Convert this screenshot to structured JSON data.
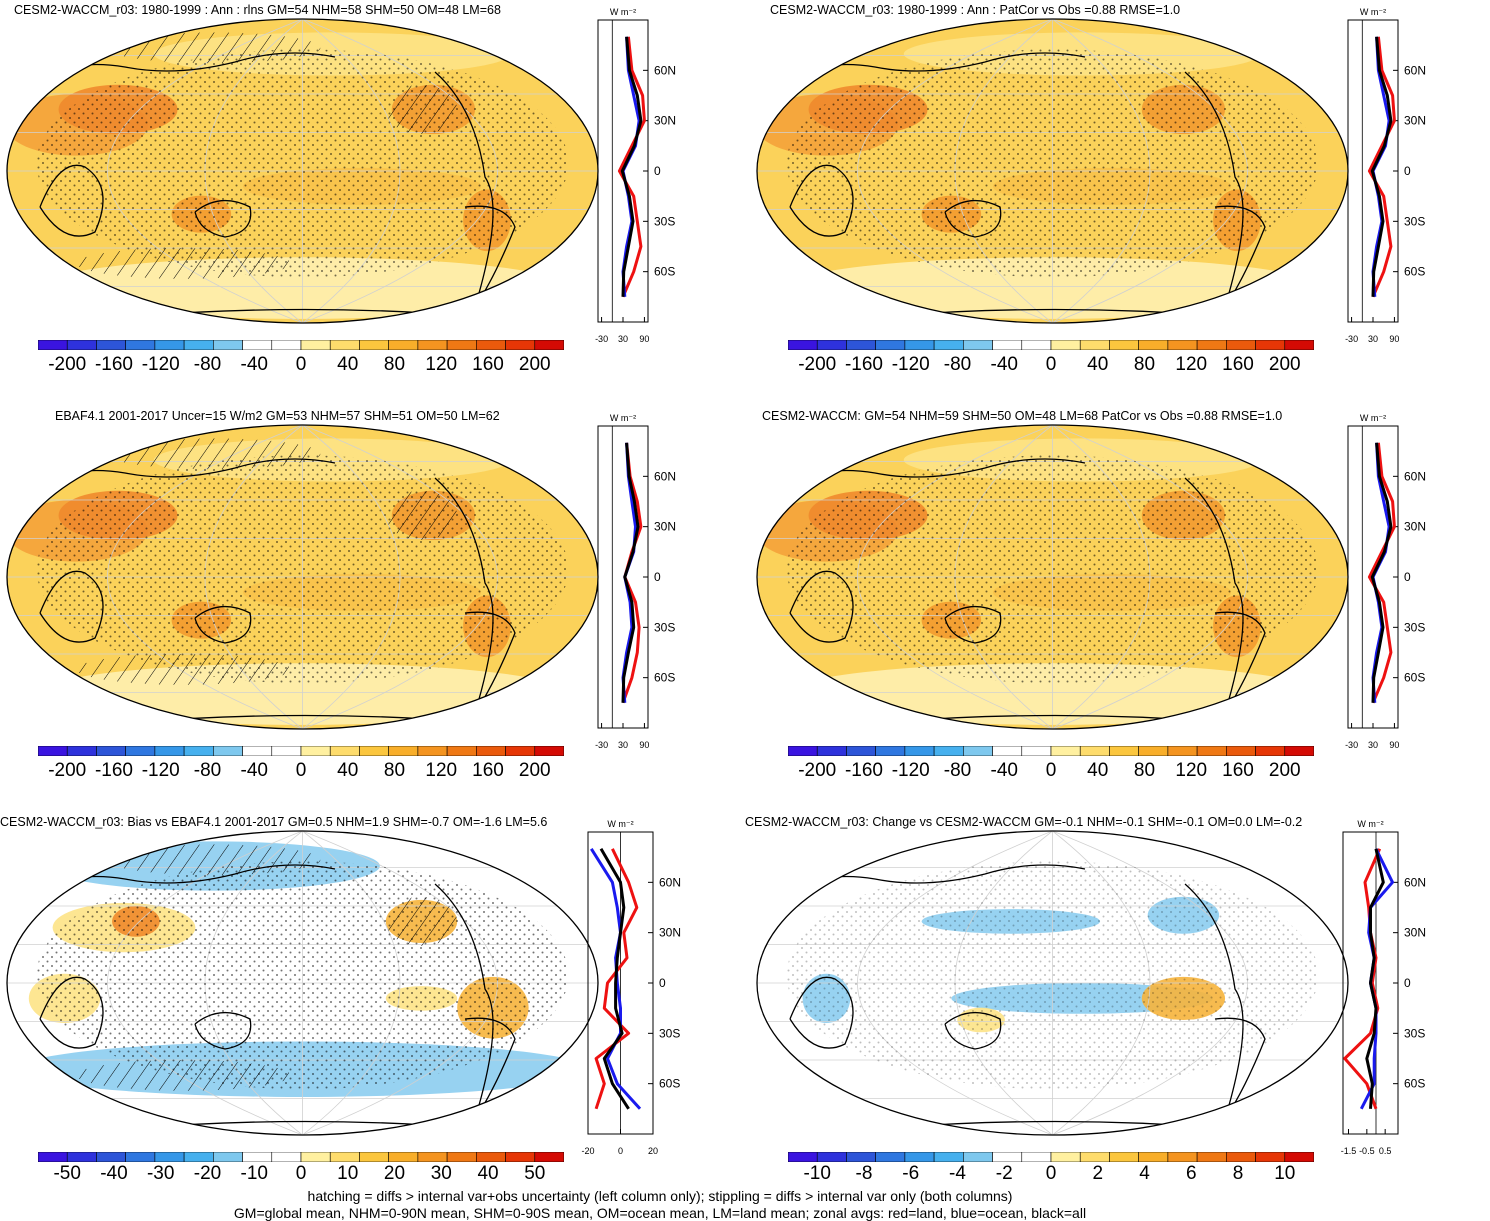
{
  "panels": [
    {
      "id": "p1",
      "title": "CESM2-WACCM_r03: 1980-1999 : Ann : rlns GM=54 NHM=58 SHM=50 OM=48 LM=68",
      "colorbar": [
        "-200",
        "-160",
        "-120",
        "-80",
        "-40",
        "0",
        "40",
        "80",
        "120",
        "160",
        "200"
      ],
      "zonal_xticks": [
        "-30",
        "30",
        "90"
      ],
      "zonal_xlim": [
        -40,
        100
      ],
      "zonal_yticks": [
        "60N",
        "30N",
        "0",
        "30S",
        "60S"
      ],
      "units": "W m⁻²",
      "hatched": true,
      "palette": "warm"
    },
    {
      "id": "p2",
      "title": "CESM2-WACCM_r03: 1980-1999 : Ann : PatCor vs Obs =0.88 RMSE=1.0",
      "colorbar": [
        "-200",
        "-160",
        "-120",
        "-80",
        "-40",
        "0",
        "40",
        "80",
        "120",
        "160",
        "200"
      ],
      "zonal_xticks": [
        "-30",
        "30",
        "90"
      ],
      "zonal_xlim": [
        -40,
        100
      ],
      "zonal_yticks": [
        "60N",
        "30N",
        "0",
        "30S",
        "60S"
      ],
      "units": "W m⁻²",
      "hatched": false,
      "palette": "warm"
    },
    {
      "id": "p3",
      "title": "EBAF4.1 2001-2017 Uncer=15 W/m2 GM=53 NHM=57 SHM=51 OM=50 LM=62",
      "colorbar": [
        "-200",
        "-160",
        "-120",
        "-80",
        "-40",
        "0",
        "40",
        "80",
        "120",
        "160",
        "200"
      ],
      "zonal_xticks": [
        "-30",
        "30",
        "90"
      ],
      "zonal_xlim": [
        -40,
        100
      ],
      "zonal_yticks": [
        "60N",
        "30N",
        "0",
        "30S",
        "60S"
      ],
      "units": "W m⁻²",
      "hatched": true,
      "palette": "warm"
    },
    {
      "id": "p4",
      "title": "CESM2-WACCM: GM=54 NHM=59 SHM=50 OM=48 LM=68 PatCor vs Obs =0.88 RMSE=1.0",
      "colorbar": [
        "-200",
        "-160",
        "-120",
        "-80",
        "-40",
        "0",
        "40",
        "80",
        "120",
        "160",
        "200"
      ],
      "zonal_xticks": [
        "-30",
        "30",
        "90"
      ],
      "zonal_xlim": [
        -40,
        100
      ],
      "zonal_yticks": [
        "60N",
        "30N",
        "0",
        "30S",
        "60S"
      ],
      "units": "W m⁻²",
      "hatched": false,
      "palette": "warm"
    },
    {
      "id": "p5",
      "title": "CESM2-WACCM_r03: Bias vs EBAF4.1 2001-2017 GM=0.5 NHM=1.9 SHM=-0.7 OM=-1.6 LM=5.6",
      "colorbar": [
        "-50",
        "-40",
        "-30",
        "-20",
        "-10",
        "0",
        "10",
        "20",
        "30",
        "40",
        "50"
      ],
      "zonal_xticks": [
        "-20",
        "0",
        "20"
      ],
      "zonal_xlim": [
        -20,
        20
      ],
      "zonal_yticks": [
        "60N",
        "30N",
        "0",
        "30S",
        "60S"
      ],
      "units": "W m⁻²",
      "hatched": true,
      "palette": "diff"
    },
    {
      "id": "p6",
      "title": "CESM2-WACCM_r03: Change vs CESM2-WACCM GM=-0.1 NHM=-0.1 SHM=-0.1 OM=0.0 LM=-0.2",
      "colorbar": [
        "-10",
        "-8",
        "-6",
        "-4",
        "-2",
        "0",
        "2",
        "4",
        "6",
        "8",
        "10"
      ],
      "zonal_xticks": [
        "-1.5",
        "-0.5",
        "0.5"
      ],
      "zonal_xlim": [
        -1.8,
        1.2
      ],
      "zonal_yticks": [
        "60N",
        "30N",
        "0",
        "30S",
        "60S"
      ],
      "units": "W m⁻²",
      "hatched": false,
      "palette": "change"
    }
  ],
  "colors": {
    "colorbar": [
      "#3a14e0",
      "#2e32dc",
      "#2d55d8",
      "#2f77e0",
      "#3597e8",
      "#46b0ee",
      "#7ec8ee",
      "#ffffff",
      "#ffffff",
      "#fff0a0",
      "#fedc6c",
      "#fbc63e",
      "#f8ae2a",
      "#f49420",
      "#ef7814",
      "#ea5a0c",
      "#e63606",
      "#d40a04"
    ],
    "land_zonal": "#ee1111",
    "ocean_zonal": "#1a1aee",
    "all_zonal": "#000000"
  },
  "chart_data": [
    {
      "type": "heatmap",
      "title": "CESM2-WACCM_r03: 1980-1999 : Ann : rlns GM=54 NHM=58 SHM=50 OM=48 LM=68",
      "units": "W m⁻²",
      "scale": [
        -200,
        200
      ],
      "zonal_means": {
        "y": [
          80,
          60,
          45,
          30,
          15,
          0,
          -15,
          -30,
          -45,
          -60,
          -75
        ],
        "land": [
          45,
          55,
          85,
          90,
          55,
          20,
          60,
          70,
          80,
          60,
          30
        ],
        "ocean": [
          40,
          45,
          60,
          75,
          65,
          30,
          45,
          55,
          40,
          30,
          35
        ],
        "all": [
          40,
          48,
          70,
          80,
          62,
          28,
          48,
          58,
          45,
          32,
          30
        ]
      }
    },
    {
      "type": "heatmap",
      "title": "CESM2-WACCM_r03: 1980-1999 : Ann : PatCor vs Obs =0.88 RMSE=1.0",
      "units": "W m⁻²",
      "scale": [
        -200,
        200
      ],
      "zonal_means": {
        "y": [
          80,
          60,
          45,
          30,
          15,
          0,
          -15,
          -30,
          -45,
          -60,
          -75
        ],
        "land": [
          45,
          55,
          85,
          90,
          55,
          20,
          60,
          70,
          80,
          60,
          30
        ],
        "ocean": [
          40,
          45,
          60,
          75,
          65,
          30,
          45,
          55,
          40,
          30,
          35
        ],
        "all": [
          40,
          48,
          70,
          80,
          62,
          28,
          48,
          58,
          45,
          32,
          30
        ]
      }
    },
    {
      "type": "heatmap",
      "title": "EBAF4.1 2001-2017 Uncer=15 W/m2 GM=53 NHM=57 SHM=51 OM=50 LM=62",
      "units": "W m⁻²",
      "scale": [
        -200,
        200
      ],
      "zonal_means": {
        "y": [
          80,
          60,
          45,
          30,
          15,
          0,
          -15,
          -30,
          -45,
          -60,
          -75
        ],
        "land": [
          40,
          50,
          70,
          80,
          55,
          35,
          65,
          75,
          70,
          55,
          30
        ],
        "ocean": [
          40,
          45,
          55,
          65,
          60,
          35,
          50,
          55,
          40,
          30,
          35
        ],
        "all": [
          40,
          47,
          62,
          72,
          58,
          35,
          55,
          60,
          45,
          32,
          30
        ]
      }
    },
    {
      "type": "heatmap",
      "title": "CESM2-WACCM: GM=54 NHM=59 SHM=50 OM=48 LM=68 PatCor vs Obs =0.88 RMSE=1.0",
      "units": "W m⁻²",
      "scale": [
        -200,
        200
      ],
      "zonal_means": {
        "y": [
          80,
          60,
          45,
          30,
          15,
          0,
          -15,
          -30,
          -45,
          -60,
          -75
        ],
        "land": [
          45,
          55,
          85,
          90,
          55,
          20,
          60,
          70,
          80,
          60,
          30
        ],
        "ocean": [
          40,
          45,
          60,
          75,
          65,
          30,
          45,
          55,
          40,
          30,
          35
        ],
        "all": [
          40,
          48,
          70,
          80,
          62,
          28,
          48,
          58,
          45,
          32,
          30
        ]
      }
    },
    {
      "type": "heatmap",
      "title": "CESM2-WACCM_r03: Bias vs EBAF4.1 2001-2017 GM=0.5 NHM=1.9 SHM=-0.7 OM=-1.6 LM=5.6",
      "units": "W m⁻²",
      "scale": [
        -50,
        50
      ],
      "zonal_means": {
        "y": [
          80,
          60,
          45,
          30,
          15,
          0,
          -15,
          -30,
          -45,
          -60,
          -75
        ],
        "land": [
          -5,
          5,
          10,
          2,
          4,
          -8,
          -10,
          5,
          -15,
          -10,
          -15
        ],
        "ocean": [
          -18,
          -5,
          -2,
          0,
          -3,
          -2,
          0,
          0,
          -8,
          -2,
          12
        ],
        "all": [
          -12,
          0,
          2,
          0,
          -2,
          -3,
          -3,
          1,
          -10,
          -5,
          5
        ]
      }
    },
    {
      "type": "heatmap",
      "title": "CESM2-WACCM_r03: Change vs CESM2-WACCM GM=-0.1 NHM=-0.1 SHM=-0.1 OM=0.0 LM=-0.2",
      "units": "W m⁻²",
      "scale": [
        -10,
        10
      ],
      "zonal_means": {
        "y": [
          80,
          60,
          45,
          30,
          15,
          0,
          -15,
          -30,
          -45,
          -60,
          -75
        ],
        "land": [
          0.2,
          -0.6,
          -0.4,
          -0.3,
          0.0,
          -0.2,
          0.1,
          -0.3,
          -1.7,
          -0.5,
          0.0
        ],
        "ocean": [
          0.0,
          0.9,
          -0.3,
          -0.4,
          -0.1,
          -0.3,
          0.0,
          0.0,
          -0.1,
          -0.1,
          -0.8
        ],
        "all": [
          0.0,
          0.4,
          -0.3,
          -0.3,
          -0.1,
          -0.3,
          0.0,
          -0.1,
          -0.5,
          -0.2,
          -0.3
        ]
      }
    }
  ],
  "footer": {
    "line1": "hatching = diffs > internal var+obs uncertainty (left column only); stippling = diffs > internal var only (both columns)",
    "line2": "GM=global mean, NHM=0-90N mean, SHM=0-90S mean, OM=ocean mean, LM=land mean; zonal avgs: red=land, blue=ocean, black=all"
  }
}
